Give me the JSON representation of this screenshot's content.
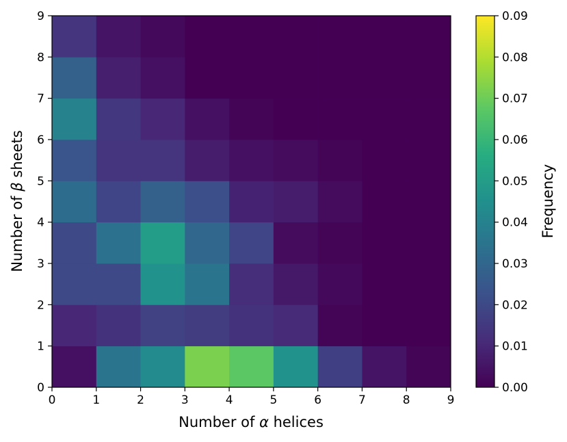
{
  "chart_data": {
    "type": "heatmap",
    "title": "",
    "xlabel_prefix": "Number of ",
    "xlabel_symbol": "α",
    "xlabel_suffix": " helices",
    "ylabel_prefix": "Number of ",
    "ylabel_symbol": "β",
    "ylabel_suffix": " sheets",
    "x_ticks": [
      "0",
      "1",
      "2",
      "3",
      "4",
      "5",
      "6",
      "7",
      "8",
      "9"
    ],
    "y_ticks": [
      "0",
      "1",
      "2",
      "3",
      "4",
      "5",
      "6",
      "7",
      "8",
      "9"
    ],
    "xlim": [
      0,
      9
    ],
    "ylim": [
      0,
      9
    ],
    "colormap": "viridis",
    "colorbar": {
      "label": "Frequency",
      "range": [
        0.0,
        0.09
      ],
      "ticks": [
        "0.00",
        "0.01",
        "0.02",
        "0.03",
        "0.04",
        "0.05",
        "0.06",
        "0.07",
        "0.08",
        "0.09"
      ]
    },
    "grid": false,
    "values_by_row_y0_to_y8": [
      [
        0.004,
        0.035,
        0.043,
        0.072,
        0.067,
        0.046,
        0.017,
        0.005,
        0.001
      ],
      [
        0.01,
        0.013,
        0.018,
        0.016,
        0.013,
        0.011,
        0.001,
        0.0,
        0.0
      ],
      [
        0.02,
        0.02,
        0.046,
        0.035,
        0.012,
        0.006,
        0.002,
        0.0,
        0.0
      ],
      [
        0.02,
        0.034,
        0.05,
        0.03,
        0.019,
        0.003,
        0.001,
        0.0,
        0.0
      ],
      [
        0.032,
        0.019,
        0.028,
        0.022,
        0.009,
        0.007,
        0.003,
        0.0,
        0.0
      ],
      [
        0.024,
        0.014,
        0.014,
        0.007,
        0.004,
        0.003,
        0.001,
        0.0,
        0.0
      ],
      [
        0.04,
        0.015,
        0.01,
        0.004,
        0.001,
        0.0,
        0.0,
        0.0,
        0.0
      ],
      [
        0.028,
        0.008,
        0.004,
        0.0,
        0.0,
        0.0,
        0.0,
        0.0,
        0.0
      ],
      [
        0.014,
        0.005,
        0.002,
        0.0,
        0.0,
        0.0,
        0.0,
        0.0,
        0.0
      ]
    ]
  }
}
